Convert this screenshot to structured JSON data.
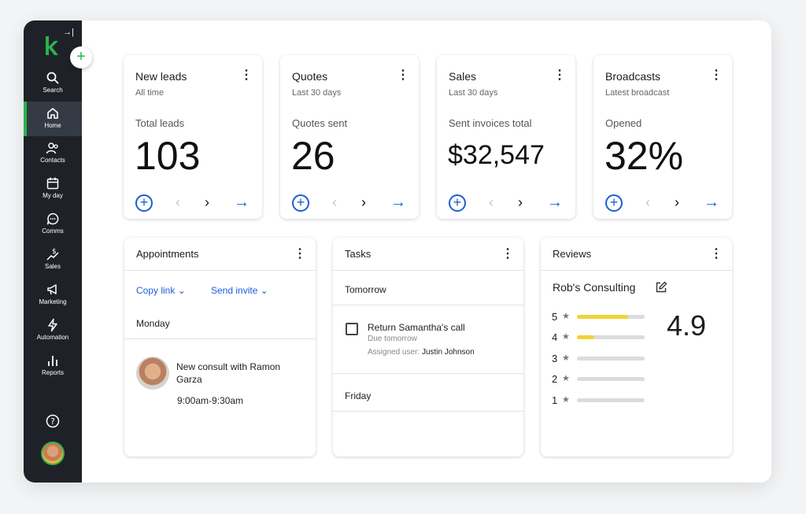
{
  "sidebar": {
    "items": [
      {
        "label": "Search",
        "icon": "search-icon"
      },
      {
        "label": "Home",
        "icon": "home-icon",
        "active": true
      },
      {
        "label": "Contacts",
        "icon": "contacts-icon"
      },
      {
        "label": "My day",
        "icon": "calendar-icon"
      },
      {
        "label": "Comms",
        "icon": "chat-icon"
      },
      {
        "label": "Sales",
        "icon": "sales-icon"
      },
      {
        "label": "Marketing",
        "icon": "megaphone-icon"
      },
      {
        "label": "Automation",
        "icon": "lightning-icon"
      },
      {
        "label": "Reports",
        "icon": "bar-chart-icon"
      }
    ],
    "fab": "+",
    "collapse": "→|"
  },
  "stats": [
    {
      "title": "New leads",
      "subtitle": "All time",
      "metric_label": "Total leads",
      "value": "103"
    },
    {
      "title": "Quotes",
      "subtitle": "Last 30 days",
      "metric_label": "Quotes sent",
      "value": "26"
    },
    {
      "title": "Sales",
      "subtitle": "Last 30 days",
      "metric_label": "Sent invoices total",
      "value": "$32,547"
    },
    {
      "title": "Broadcasts",
      "subtitle": "Latest broadcast",
      "metric_label": "Opened",
      "value": "32%"
    }
  ],
  "controls": {
    "add": "+",
    "prev": "‹",
    "next": "›",
    "go": "→",
    "menu": "⋮",
    "chevron": "⌄"
  },
  "appointments": {
    "title": "Appointments",
    "copy_link": "Copy link",
    "send_invite": "Send invite",
    "day": "Monday",
    "event_title": "New consult with Ramon Garza",
    "event_time": "9:00am-9:30am"
  },
  "tasks": {
    "title": "Tasks",
    "group1": "Tomorrow",
    "task_title": "Return Samantha's call",
    "task_due": "Due tomorrow",
    "assigned_label": "Assigned user:",
    "assigned_user": "Justin Johnson",
    "group2": "Friday"
  },
  "reviews": {
    "title": "Reviews",
    "business": "Rob's Consulting",
    "score": "4.9",
    "ratings": [
      {
        "stars": "5",
        "fill": 0.75
      },
      {
        "stars": "4",
        "fill": 0.25
      },
      {
        "stars": "3",
        "fill": 0
      },
      {
        "stars": "2",
        "fill": 0
      },
      {
        "stars": "1",
        "fill": 0
      }
    ],
    "bar_color": "#f2d231"
  },
  "colors": {
    "brand": "#2bb24c",
    "accent": "#1a5fd6",
    "sidebar": "#1e2228"
  }
}
